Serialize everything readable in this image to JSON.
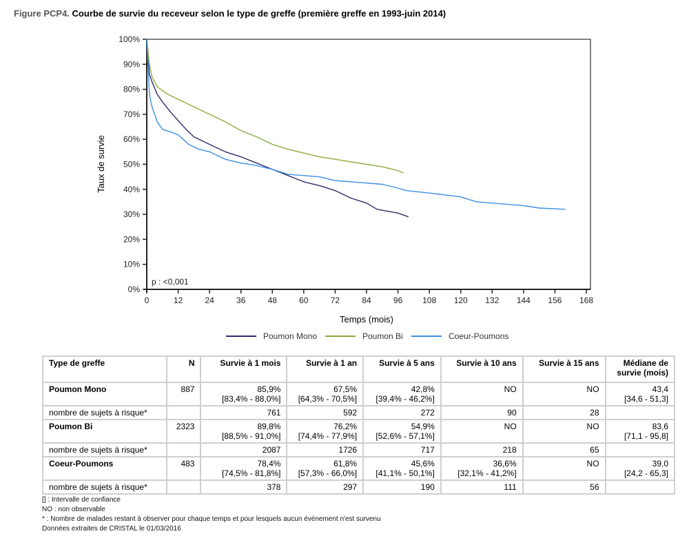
{
  "title": {
    "prefix": "Figure PCP4.",
    "text": "Courbe de survie du receveur selon le type de greffe (première greffe en 1993-juin 2014)"
  },
  "chart_data": {
    "type": "line",
    "title": "Courbe de survie du receveur selon le type de greffe (première greffe en 1993-juin 2014)",
    "xlabel": "Temps (mois)",
    "ylabel": "Taux de survie",
    "xlim": [
      0,
      168
    ],
    "ylim": [
      0,
      100
    ],
    "xticks": [
      0,
      12,
      24,
      36,
      48,
      60,
      72,
      84,
      96,
      108,
      120,
      132,
      144,
      156,
      168
    ],
    "yticks": [
      "0%",
      "10%",
      "20%",
      "30%",
      "40%",
      "50%",
      "60%",
      "70%",
      "80%",
      "90%",
      "100%"
    ],
    "annotation": "p : <0,001",
    "grid": false,
    "legend_position": "bottom",
    "series": [
      {
        "name": "Poumon Mono",
        "color": "#2e2a6b",
        "x": [
          0,
          1,
          2,
          4,
          6,
          9,
          12,
          15,
          18,
          24,
          30,
          36,
          42,
          48,
          54,
          60,
          66,
          72,
          78,
          84,
          88,
          96,
          100
        ],
        "y": [
          100,
          86,
          83,
          78,
          75,
          71,
          67.5,
          64,
          61,
          58,
          55,
          53,
          50.5,
          48,
          45.5,
          43,
          41.5,
          39.5,
          36.5,
          34.5,
          32,
          30.5,
          29
        ]
      },
      {
        "name": "Poumon Bi",
        "color": "#8aad3c",
        "x": [
          0,
          1,
          2,
          4,
          8,
          12,
          18,
          24,
          30,
          36,
          42,
          48,
          54,
          60,
          66,
          72,
          78,
          84,
          90,
          96,
          98
        ],
        "y": [
          100,
          90,
          85,
          81,
          78,
          76,
          73,
          70,
          67,
          63.5,
          61,
          58,
          56,
          54.5,
          53,
          52,
          51,
          50,
          49,
          47.5,
          46.5
        ]
      },
      {
        "name": "Coeur-Poumons",
        "color": "#3d8fe0",
        "x": [
          0,
          1,
          2,
          4,
          6,
          9,
          12,
          16,
          20,
          24,
          30,
          36,
          42,
          48,
          54,
          60,
          66,
          72,
          78,
          84,
          90,
          96,
          99,
          108,
          120,
          126,
          132,
          144,
          150,
          160
        ],
        "y": [
          100,
          78,
          73,
          67,
          64,
          63,
          61.8,
          58,
          56,
          55,
          52,
          50.5,
          49.5,
          48,
          46,
          45.5,
          45,
          43.5,
          43,
          42.5,
          42,
          40.5,
          39.5,
          38.5,
          37,
          35,
          34.5,
          33.5,
          32.5,
          32
        ]
      }
    ]
  },
  "table": {
    "headers": [
      "Type de greffe",
      "N",
      "Survie à 1 mois",
      "Survie à 1 an",
      "Survie à 5 ans",
      "Survie à 10 ans",
      "Survie à 15 ans",
      "Médiane de survie (mois)"
    ],
    "groups": [
      {
        "name": "Poumon Mono",
        "n": "887",
        "values": [
          "85,9%",
          "67,5%",
          "42,8%",
          "NO",
          "NO",
          "43,4"
        ],
        "ci": [
          "[83,4% - 88,0%]",
          "[64,3% - 70,5%]",
          "[39,4% - 46,2%]",
          "",
          "",
          "[34,6 - 51,3]"
        ],
        "risk_label": "nombre de sujets à risque*",
        "risk": [
          "761",
          "592",
          "272",
          "90",
          "28",
          ""
        ]
      },
      {
        "name": "Poumon Bi",
        "n": "2323",
        "values": [
          "89,8%",
          "76,2%",
          "54,9%",
          "NO",
          "NO",
          "83,6"
        ],
        "ci": [
          "[88,5% - 91,0%]",
          "[74,4% - 77,9%]",
          "[52,6% - 57,1%]",
          "",
          "",
          "[71,1 - 95,8]"
        ],
        "risk_label": "nombre de sujets à risque*",
        "risk": [
          "2087",
          "1726",
          "717",
          "218",
          "65",
          ""
        ]
      },
      {
        "name": "Coeur-Poumons",
        "n": "483",
        "values": [
          "78,4%",
          "61,8%",
          "45,6%",
          "36,6%",
          "NO",
          "39,0"
        ],
        "ci": [
          "[74,5% - 81,8%]",
          "[57,3% - 66,0%]",
          "[41,1% - 50,1%]",
          "[32,1% - 41,2%]",
          "",
          "[24,2 - 65,3]"
        ],
        "risk_label": "nombre de sujets à risque*",
        "risk": [
          "378",
          "297",
          "190",
          "111",
          "56",
          ""
        ]
      }
    ]
  },
  "notes": [
    "[] : Intervalle de confiance",
    "NO : non observable",
    "* : Nombre de malades restant à observer pour chaque temps et pour lesquels aucun évènement n'est survenu",
    "Données extraites de CRISTAL le 01/03/2016"
  ]
}
